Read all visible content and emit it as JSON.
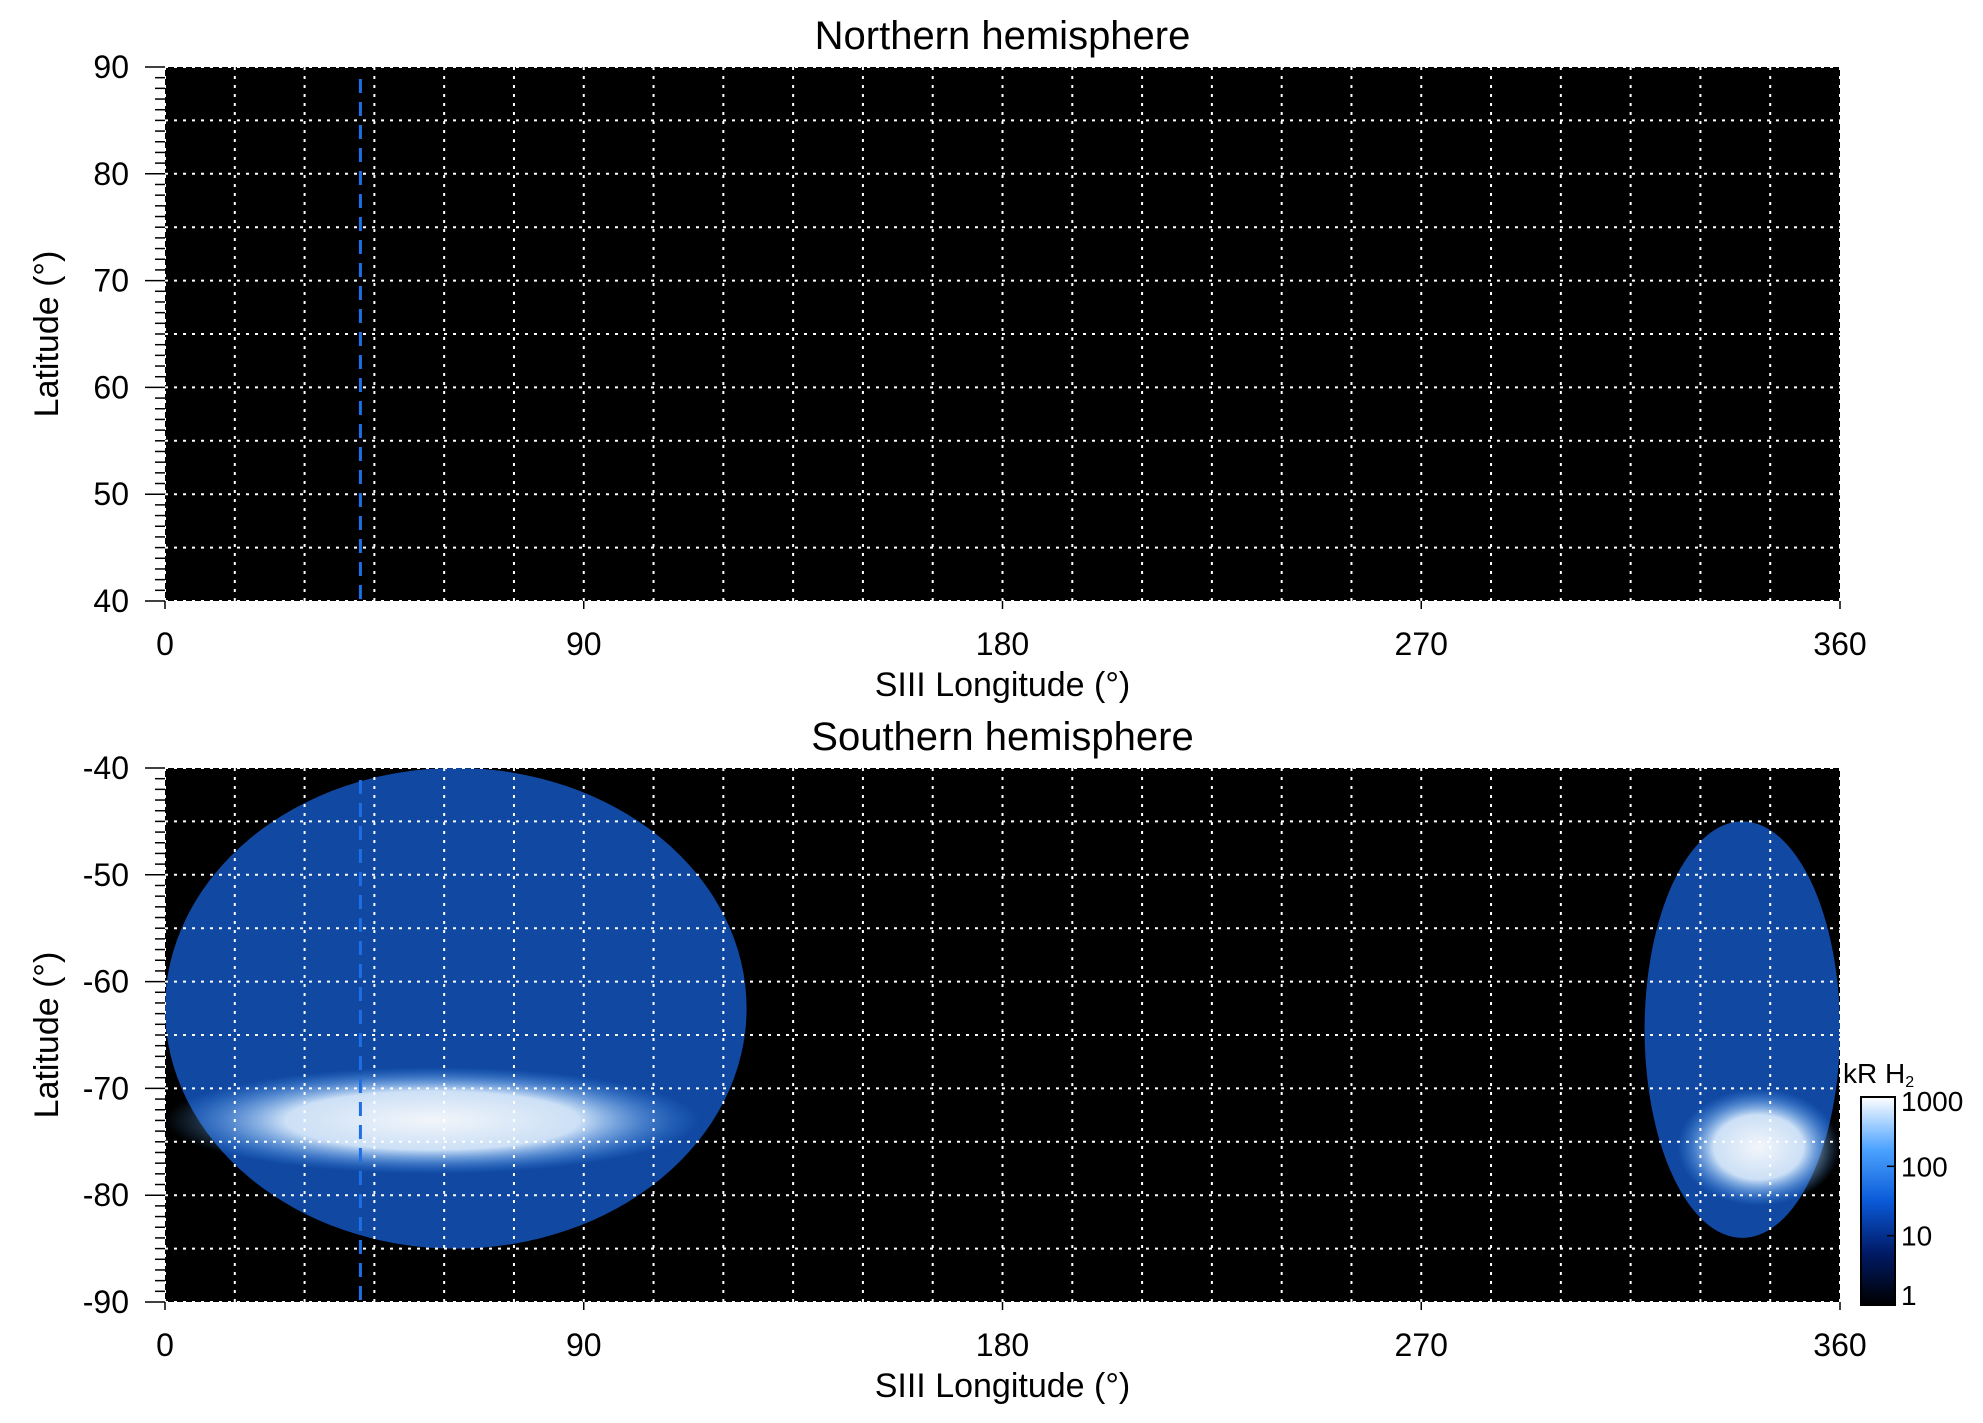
{
  "chart_data": [
    {
      "type": "heatmap",
      "title": "Northern hemisphere",
      "xlabel": "SIII Longitude (°)",
      "ylabel": "Latitude (°)",
      "xlim": [
        0,
        360
      ],
      "ylim": [
        40,
        90
      ],
      "xticks": [
        "0",
        "90",
        "180",
        "270",
        "360"
      ],
      "yticks": [
        "40",
        "50",
        "60",
        "70",
        "80",
        "90"
      ],
      "grid": true,
      "marker_longitude": 42,
      "emission": []
    },
    {
      "type": "heatmap",
      "title": "Southern hemisphere",
      "xlabel": "SIII Longitude (°)",
      "ylabel": "Latitude (°)",
      "xlim": [
        0,
        360
      ],
      "ylim": [
        -90,
        -40
      ],
      "xticks": [
        "0",
        "90",
        "180",
        "270",
        "360"
      ],
      "yticks": [
        "-90",
        "-80",
        "-70",
        "-60",
        "-50",
        "-40"
      ],
      "grid": true,
      "marker_longitude": 42,
      "emission": [
        {
          "region": "diffuse emission",
          "lon_range": [
            0,
            125
          ],
          "lat_range": [
            -85,
            -40
          ],
          "level_kR": 30
        },
        {
          "region": "main auroral oval",
          "lon_range": [
            0,
            115
          ],
          "lat_range": [
            -78,
            -68
          ],
          "level_kR": 1000
        },
        {
          "region": "diffuse emission",
          "lon_range": [
            318,
            360
          ],
          "lat_range": [
            -84,
            -45
          ],
          "level_kR": 30
        },
        {
          "region": "main auroral oval",
          "lon_range": [
            325,
            360
          ],
          "lat_range": [
            -81,
            -70
          ],
          "level_kR": 1000
        }
      ],
      "colorbar": {
        "label_main": "kR H",
        "label_sub": "2",
        "ticks": [
          "1",
          "10",
          "100",
          "1000"
        ],
        "colors": [
          "#000000",
          "#001a66",
          "#0a5ad8",
          "#4da3ff",
          "#ffffff"
        ]
      }
    }
  ]
}
